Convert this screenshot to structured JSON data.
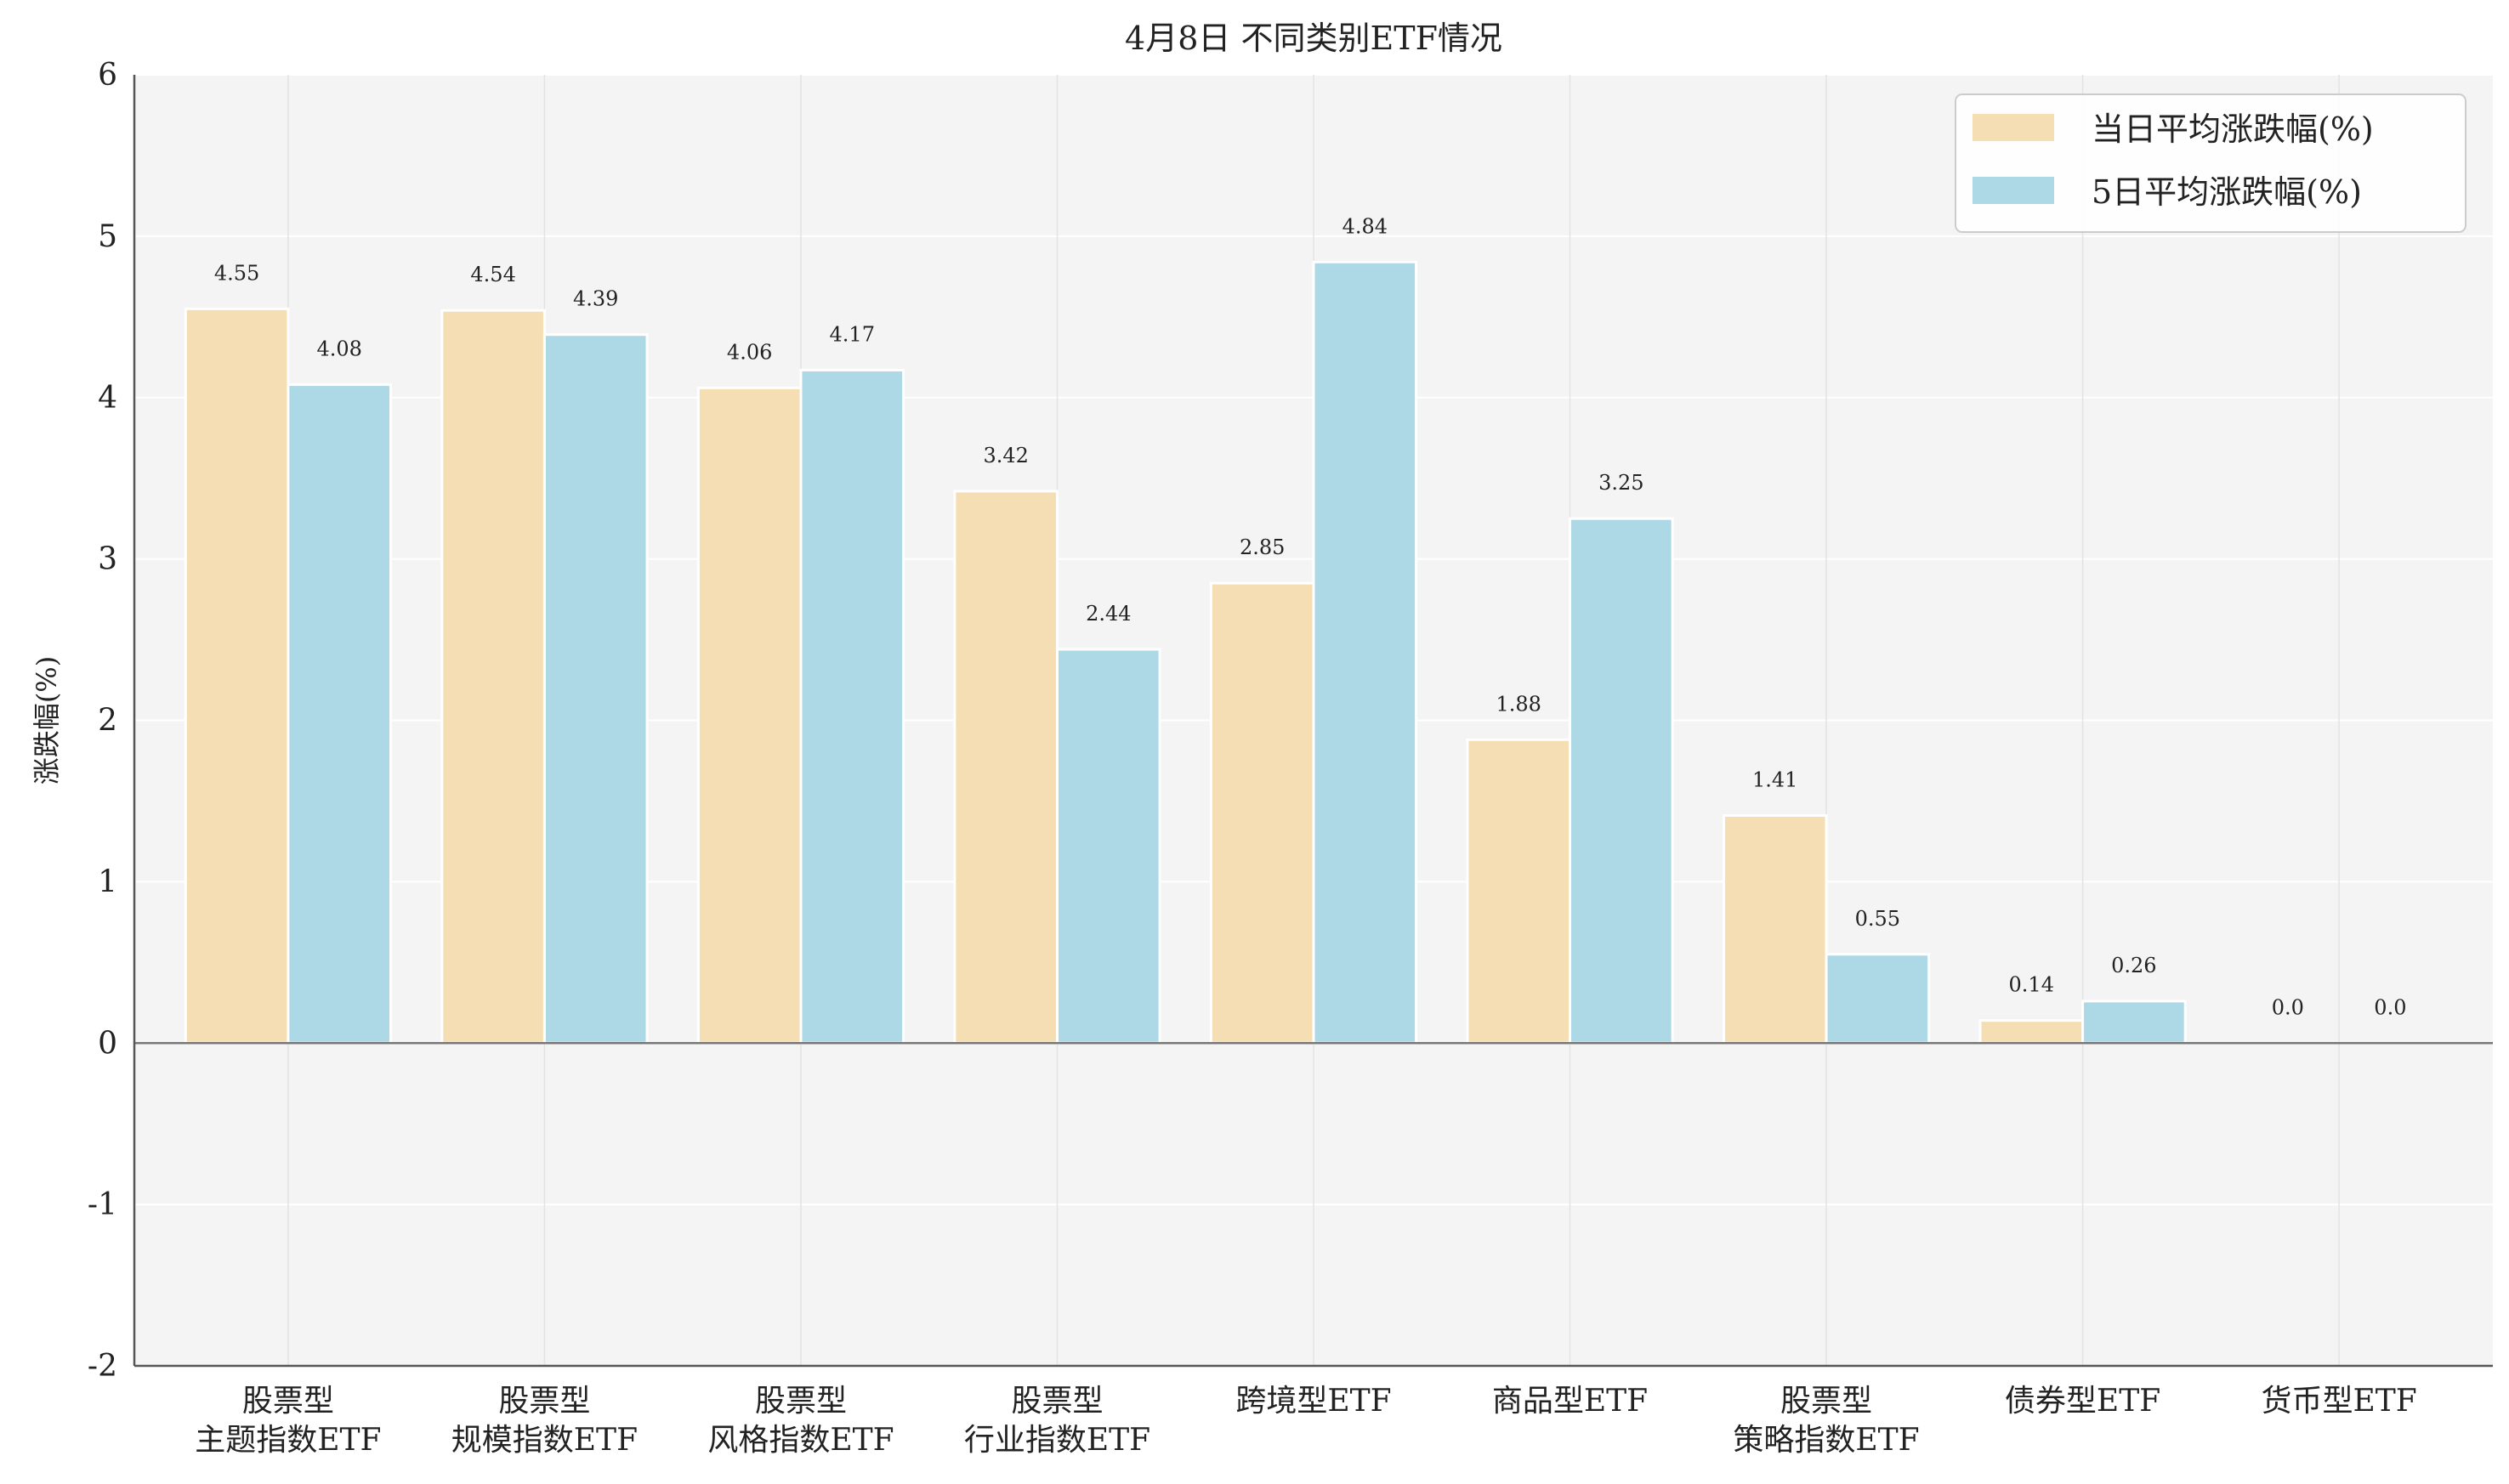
{
  "chart_data": {
    "type": "bar",
    "title": "4月8日 不同类别ETF情况",
    "ylabel": "涨跌幅(%)",
    "ylim": [
      -2,
      6
    ],
    "yticks": [
      "-2",
      "-1",
      "0",
      "1",
      "2",
      "3",
      "4",
      "5",
      "6"
    ],
    "grid": true,
    "legend_position": "top-right",
    "categories": [
      [
        "股票型",
        "主题指数ETF"
      ],
      [
        "股票型",
        "规模指数ETF"
      ],
      [
        "股票型",
        "风格指数ETF"
      ],
      [
        "股票型",
        "行业指数ETF"
      ],
      [
        "跨境型ETF"
      ],
      [
        "商品型ETF"
      ],
      [
        "股票型",
        "策略指数ETF"
      ],
      [
        "债券型ETF"
      ],
      [
        "货币型ETF"
      ]
    ],
    "series": [
      {
        "name": "当日平均涨跌幅(%)",
        "color": "#f5deb3",
        "values": [
          4.55,
          4.54,
          4.06,
          3.42,
          2.85,
          1.88,
          1.41,
          0.14,
          0.0
        ],
        "labels": [
          "4.55",
          "4.54",
          "4.06",
          "3.42",
          "2.85",
          "1.88",
          "1.41",
          "0.14",
          "0.0"
        ]
      },
      {
        "name": "5日平均涨跌幅(%)",
        "color": "#add8e6",
        "values": [
          4.08,
          4.39,
          4.17,
          2.44,
          4.84,
          3.25,
          0.55,
          0.26,
          0.0
        ],
        "labels": [
          "4.08",
          "4.39",
          "4.17",
          "2.44",
          "4.84",
          "3.25",
          "0.55",
          "0.26",
          "0.0"
        ]
      }
    ],
    "colors": {
      "plot_background": "#f4f4f4",
      "grid": "#ffffff",
      "axis": "#555555"
    }
  }
}
